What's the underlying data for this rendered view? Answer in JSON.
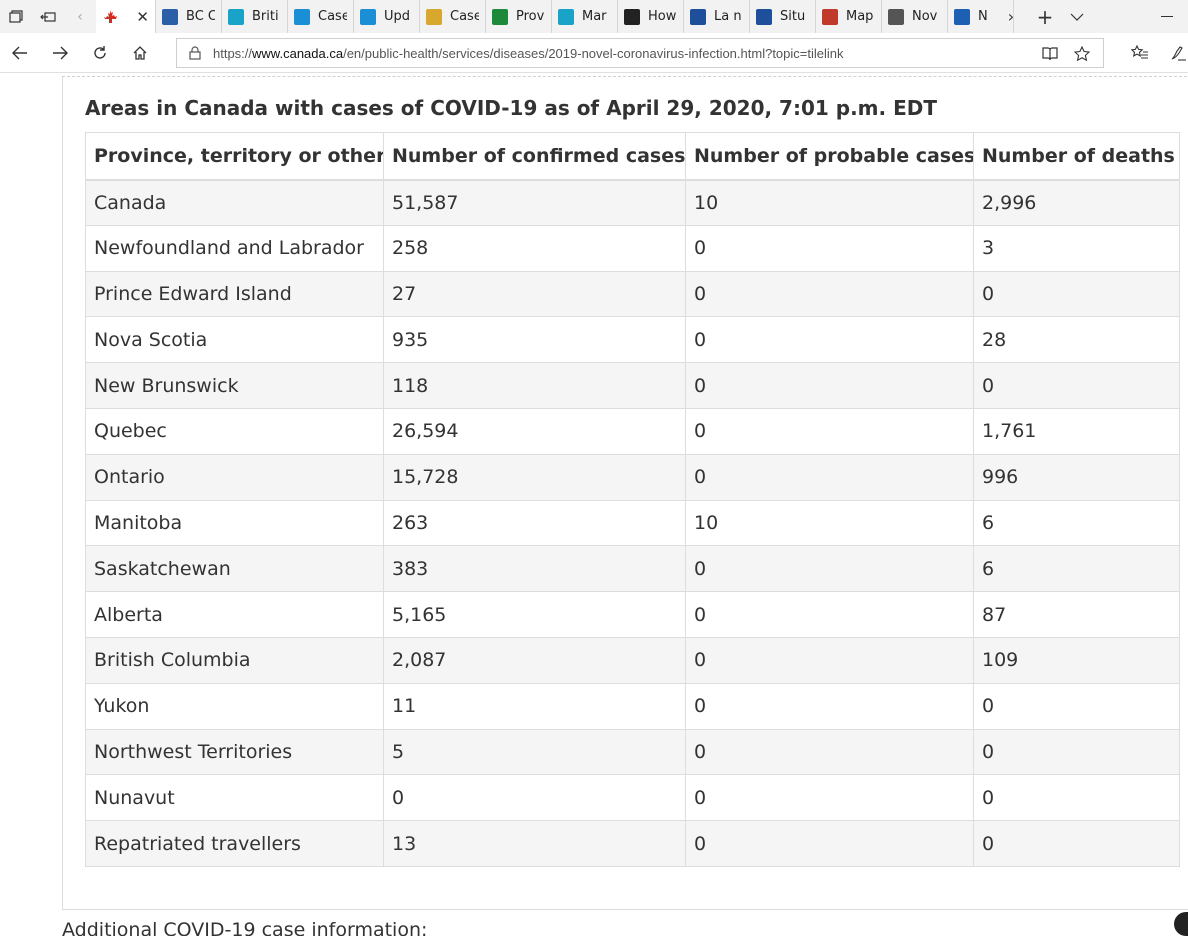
{
  "browser": {
    "tabs": [
      {
        "label": "",
        "icon": "canada-flag-icon",
        "active": true,
        "color": "#d52b1e"
      },
      {
        "label": "BC C",
        "icon": "bc-cdc-icon",
        "color": "#2b5fa8"
      },
      {
        "label": "Briti",
        "icon": "bc-gov-icon",
        "color": "#1aa3c9"
      },
      {
        "label": "Case",
        "icon": "alberta-icon",
        "color": "#1a8fd6"
      },
      {
        "label": "Upd",
        "icon": "alberta-icon",
        "color": "#1a8fd6"
      },
      {
        "label": "Case",
        "icon": "document-icon",
        "color": "#d8a72e"
      },
      {
        "label": "Prov",
        "icon": "green-site-icon",
        "color": "#1c8a3a"
      },
      {
        "label": "Mar",
        "icon": "bc-gov-icon",
        "color": "#1aa3c9"
      },
      {
        "label": "How",
        "icon": "dark-logo-icon",
        "color": "#222222"
      },
      {
        "label": "La n",
        "icon": "quebec-fleur-icon",
        "color": "#1d4f9b"
      },
      {
        "label": "Situ",
        "icon": "quebec-fleur-icon",
        "color": "#1d4f9b"
      },
      {
        "label": "Map",
        "icon": "red-pen-icon",
        "color": "#c0392b"
      },
      {
        "label": "Nov",
        "icon": "envelope-icon",
        "color": "#555555"
      },
      {
        "label": "N",
        "icon": "nova-scotia-flag-icon",
        "color": "#1d5fb3"
      }
    ],
    "url_prefix": "https://",
    "url_host": "www.canada.ca",
    "url_path": "/en/public-health/services/diseases/2019-novel-coronavirus-infection.html?topic=tilelink"
  },
  "page": {
    "title": "Areas in Canada with cases of COVID-19 as of April 29, 2020, 7:01 p.m. EDT",
    "table": {
      "headers": [
        "Province, territory or other",
        "Number of confirmed cases",
        "Number of probable cases",
        "Number of deaths"
      ],
      "rows": [
        [
          "Canada",
          "51,587",
          "10",
          "2,996"
        ],
        [
          "Newfoundland and Labrador",
          "258",
          "0",
          "3"
        ],
        [
          "Prince Edward Island",
          "27",
          "0",
          "0"
        ],
        [
          "Nova Scotia",
          "935",
          "0",
          "28"
        ],
        [
          "New Brunswick",
          "118",
          "0",
          "0"
        ],
        [
          "Quebec",
          "26,594",
          "0",
          "1,761"
        ],
        [
          "Ontario",
          "15,728",
          "0",
          "996"
        ],
        [
          "Manitoba",
          "263",
          "10",
          "6"
        ],
        [
          "Saskatchewan",
          "383",
          "0",
          "6"
        ],
        [
          "Alberta",
          "5,165",
          "0",
          "87"
        ],
        [
          "British Columbia",
          "2,087",
          "0",
          "109"
        ],
        [
          "Yukon",
          "11",
          "0",
          "0"
        ],
        [
          "Northwest Territories",
          "5",
          "0",
          "0"
        ],
        [
          "Nunavut",
          "0",
          "0",
          "0"
        ],
        [
          "Repatriated travellers",
          "13",
          "0",
          "0"
        ]
      ]
    },
    "next_heading": "Additional COVID-19 case information:"
  }
}
